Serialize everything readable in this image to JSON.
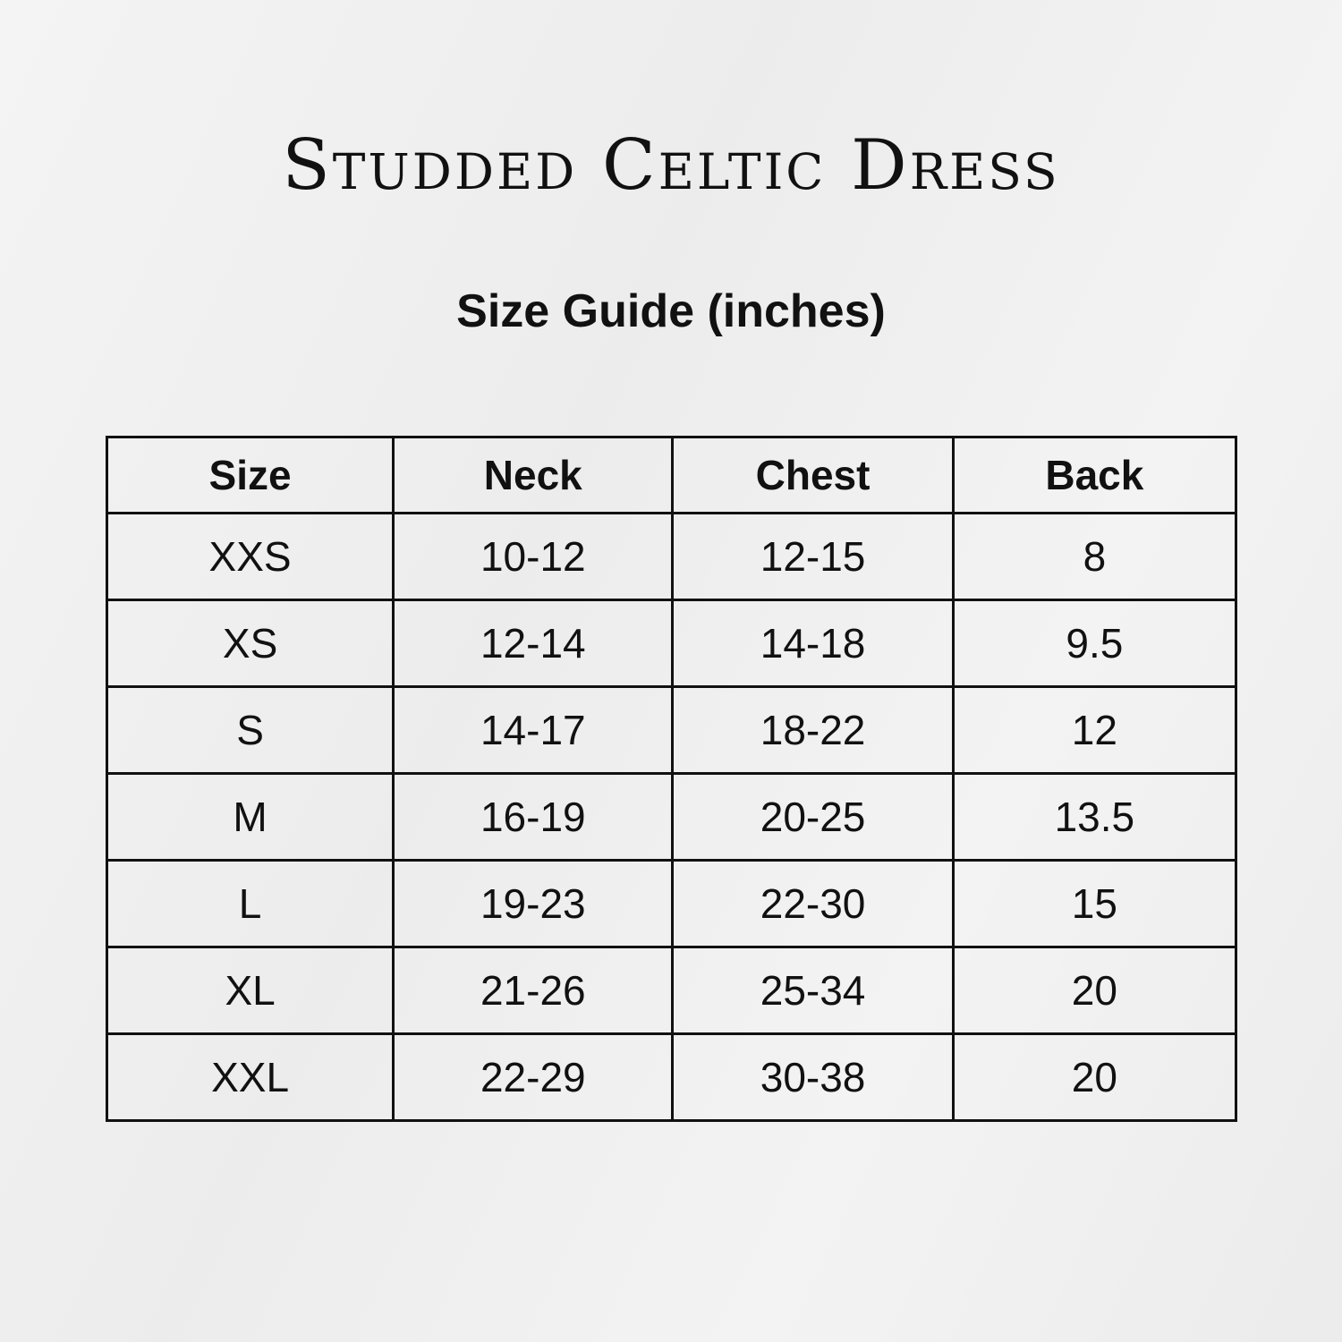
{
  "title": "Studded Celtic Dress",
  "subtitle": "Size Guide (inches)",
  "table": {
    "headers": [
      "Size",
      "Neck",
      "Chest",
      "Back"
    ],
    "rows": [
      [
        "XXS",
        "10-12",
        "12-15",
        "8"
      ],
      [
        "XS",
        "12-14",
        "14-18",
        "9.5"
      ],
      [
        "S",
        "14-17",
        "18-22",
        "12"
      ],
      [
        "M",
        "16-19",
        "20-25",
        "13.5"
      ],
      [
        "L",
        "19-23",
        "22-30",
        "15"
      ],
      [
        "XL",
        "21-26",
        "25-34",
        "20"
      ],
      [
        "XXL",
        "22-29",
        "30-38",
        "20"
      ]
    ]
  }
}
